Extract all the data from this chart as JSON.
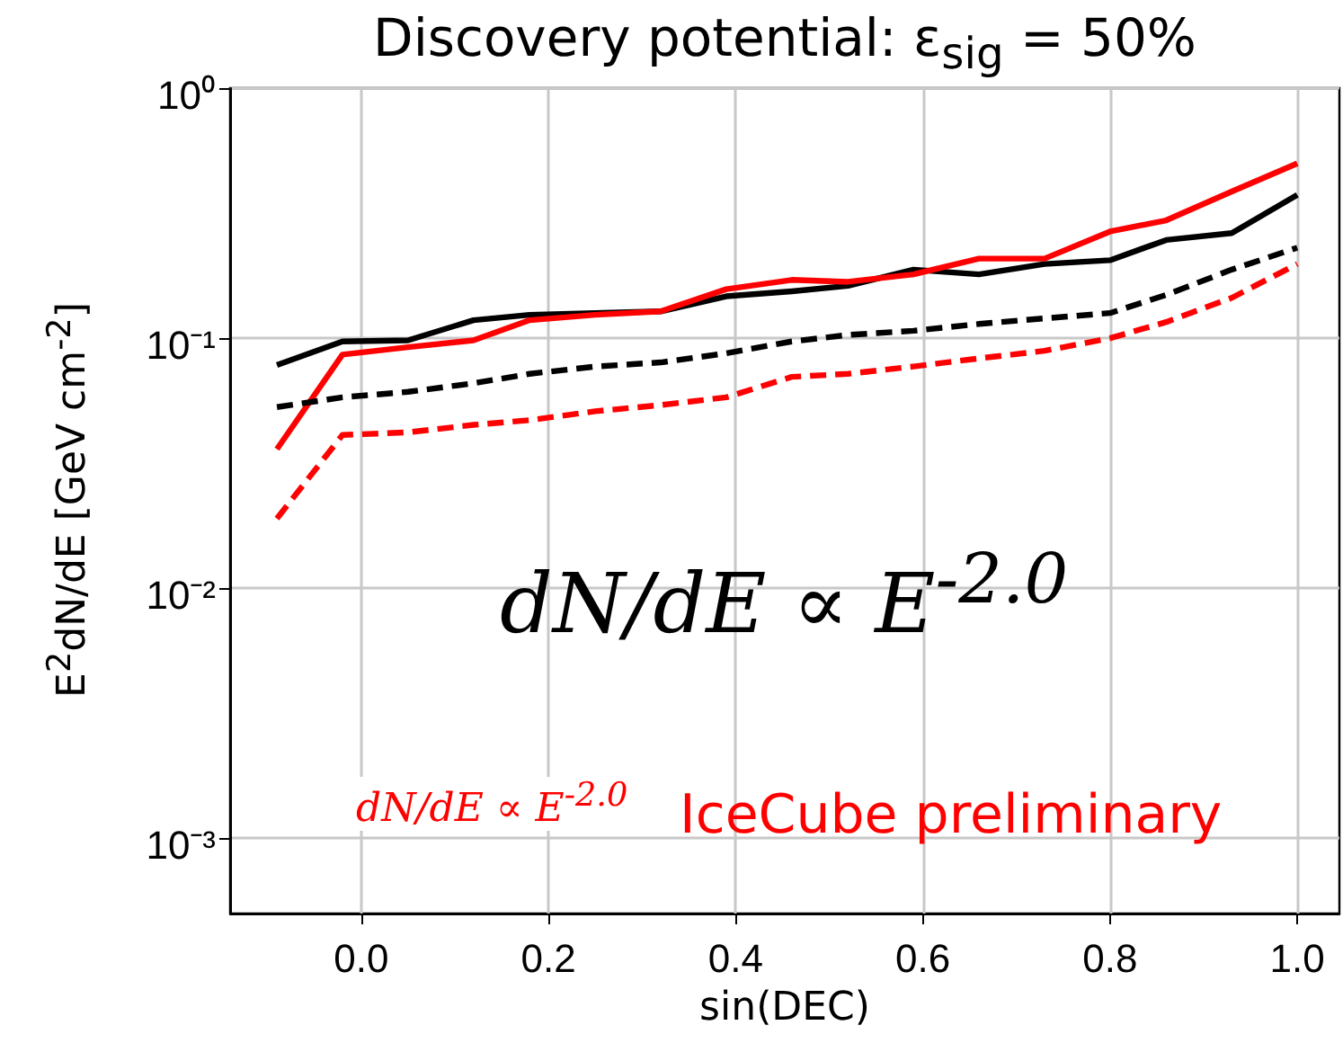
{
  "chart_data": {
    "type": "line",
    "title": "Discovery potential: ε$_{sig}$ = 50%",
    "xlabel": "sin(DEC)",
    "ylabel": "E$^{2}$dN/dE [GeV cm$^{-2}$]",
    "x": [
      -0.09,
      -0.02,
      0.05,
      0.12,
      0.18,
      0.25,
      0.32,
      0.39,
      0.46,
      0.52,
      0.59,
      0.66,
      0.73,
      0.8,
      0.86,
      0.93,
      1.0
    ],
    "series": [
      {
        "color": "#000000",
        "line_style": "solid",
        "values": [
          0.078,
          0.097,
          0.098,
          0.118,
          0.124,
          0.126,
          0.128,
          0.147,
          0.154,
          0.162,
          0.188,
          0.18,
          0.198,
          0.205,
          0.247,
          0.263,
          0.374
        ]
      },
      {
        "color": "#ff0000",
        "line_style": "solid",
        "values": [
          0.036,
          0.086,
          0.092,
          0.098,
          0.118,
          0.124,
          0.128,
          0.157,
          0.171,
          0.168,
          0.18,
          0.208,
          0.208,
          0.267,
          0.296,
          0.386,
          0.5
        ]
      },
      {
        "color": "#000000",
        "line_style": "dashed",
        "values": [
          0.053,
          0.058,
          0.061,
          0.066,
          0.072,
          0.077,
          0.08,
          0.087,
          0.097,
          0.103,
          0.107,
          0.114,
          0.12,
          0.126,
          0.149,
          0.188,
          0.23
        ]
      },
      {
        "color": "#ff0000",
        "line_style": "dashed",
        "values": [
          0.019,
          0.041,
          0.042,
          0.045,
          0.047,
          0.051,
          0.054,
          0.058,
          0.07,
          0.072,
          0.077,
          0.083,
          0.089,
          0.1,
          0.116,
          0.145,
          0.198
        ]
      }
    ],
    "xlim": [
      -0.14,
      1.045
    ],
    "xticks": [
      {
        "value": 0,
        "label": "0.0"
      },
      {
        "value": 0.2,
        "label": "0.2"
      },
      {
        "value": 0.4,
        "label": "0.4"
      },
      {
        "value": 0.6,
        "label": "0.6"
      },
      {
        "value": 0.8,
        "label": "0.8"
      },
      {
        "value": 1,
        "label": "1.0"
      }
    ],
    "ylim": [
      0.0005,
      1
    ],
    "yticks": [
      {
        "value": 0.001,
        "label": "10⁻³"
      },
      {
        "value": 0.01,
        "label": "10⁻²"
      },
      {
        "value": 0.1,
        "label": "10⁻¹"
      },
      {
        "value": 1,
        "label": "10⁰"
      }
    ],
    "log": "y",
    "grid": true,
    "marker": "none",
    "annotations": [
      "dN/dE ∝ E$^{-2.0}$",
      "dN/dE ∝ E$^{-2.0}$",
      "IceCube preliminary"
    ]
  }
}
